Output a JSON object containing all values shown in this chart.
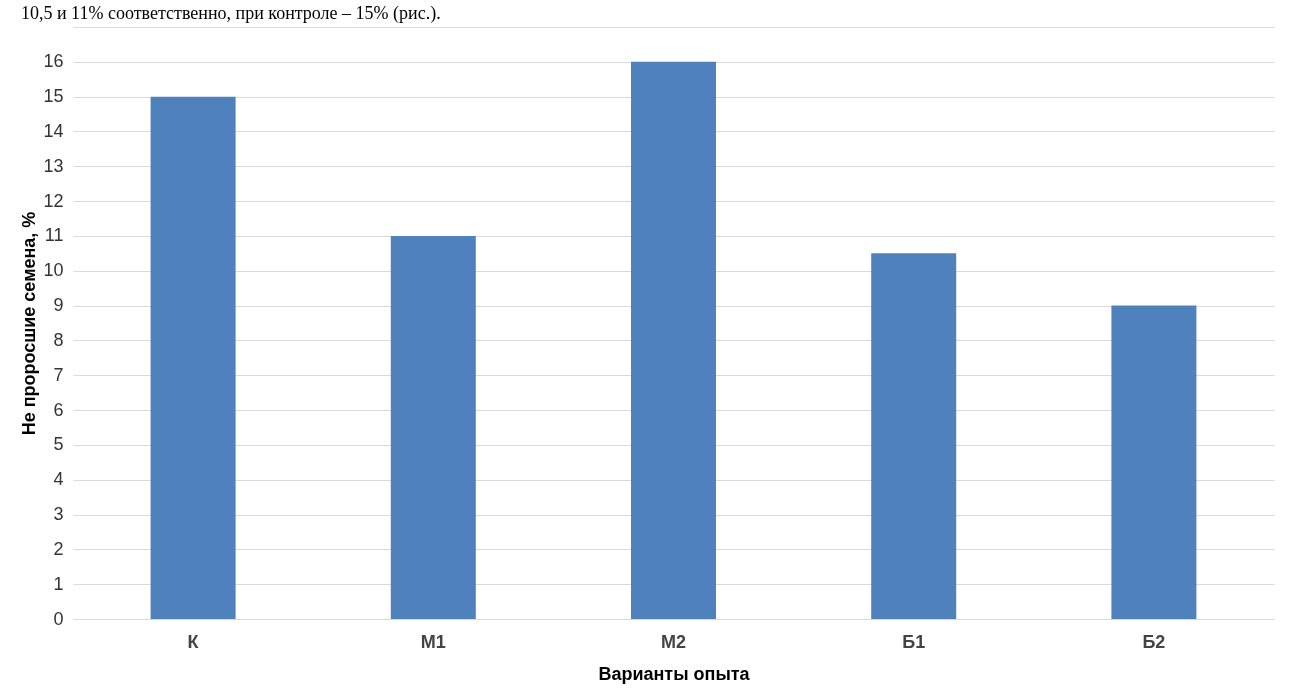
{
  "chart_data": {
    "type": "bar",
    "annotations": [
      "10,5 и 11% соответственно, при контроле – 15% (рис.)."
    ],
    "xlabel": "Варианты опыта",
    "ylabel": "Не проросшие семена, %",
    "categories": [
      "К",
      "М1",
      "М2",
      "Б1",
      "Б2"
    ],
    "values": [
      15,
      11,
      16,
      10.5,
      9
    ],
    "color": "#4f81bd",
    "ylim": [
      0,
      17
    ],
    "yticks": [
      0,
      1,
      2,
      3,
      4,
      5,
      6,
      7,
      8,
      9,
      10,
      11,
      12,
      13,
      14,
      15,
      16,
      {
        "value": 17,
        "label": null
      }
    ],
    "grid": "y"
  }
}
